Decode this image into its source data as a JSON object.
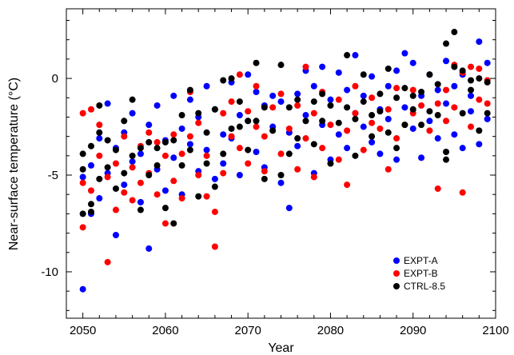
{
  "chart_data": {
    "type": "scatter",
    "xlabel": "Year",
    "ylabel": "Near-surface temperature (°C)",
    "xlim": [
      2048,
      2100
    ],
    "ylim": [
      -12.4,
      3.6
    ],
    "xticks": [
      2050,
      2060,
      2070,
      2080,
      2090,
      2100
    ],
    "yticks": [
      -10,
      -5,
      0
    ],
    "xtick_labels": [
      "2050",
      "2060",
      "2070",
      "2080",
      "2090",
      "2100"
    ],
    "ytick_labels": [
      "-10",
      "-5",
      "0"
    ],
    "legend_position": "bottom-right",
    "grid": false,
    "series": [
      {
        "name": "EXPT-A",
        "color": "#0000ff",
        "points": [
          [
            2050,
            -10.9
          ],
          [
            2050,
            -5.1
          ],
          [
            2051,
            -7.0
          ],
          [
            2051,
            -4.5
          ],
          [
            2052,
            -3.1
          ],
          [
            2052,
            -6.2
          ],
          [
            2053,
            -1.3
          ],
          [
            2053,
            -4.9
          ],
          [
            2054,
            -8.1
          ],
          [
            2054,
            -3.6
          ],
          [
            2055,
            -2.8
          ],
          [
            2055,
            -5.5
          ],
          [
            2056,
            -4.3
          ],
          [
            2056,
            -1.8
          ],
          [
            2057,
            -6.4
          ],
          [
            2057,
            -3.9
          ],
          [
            2058,
            -8.8
          ],
          [
            2058,
            -2.4
          ],
          [
            2059,
            -4.7
          ],
          [
            2059,
            -1.4
          ],
          [
            2060,
            -3.2
          ],
          [
            2060,
            -5.8
          ],
          [
            2061,
            -0.9
          ],
          [
            2061,
            -4.1
          ],
          [
            2062,
            -2.6
          ],
          [
            2062,
            -6.0
          ],
          [
            2063,
            -3.4
          ],
          [
            2063,
            -1.1
          ],
          [
            2064,
            -4.8
          ],
          [
            2064,
            -2.0
          ],
          [
            2065,
            -0.4
          ],
          [
            2065,
            -3.7
          ],
          [
            2066,
            -5.2
          ],
          [
            2066,
            -1.6
          ],
          [
            2067,
            -2.9
          ],
          [
            2067,
            -4.4
          ],
          [
            2068,
            -0.2
          ],
          [
            2068,
            -3.1
          ],
          [
            2069,
            -1.9
          ],
          [
            2069,
            -5.0
          ],
          [
            2070,
            0.2
          ],
          [
            2070,
            -2.2
          ],
          [
            2071,
            -3.8
          ],
          [
            2071,
            -0.7
          ],
          [
            2072,
            -1.4
          ],
          [
            2072,
            -4.6
          ],
          [
            2073,
            -2.5
          ],
          [
            2073,
            -0.9
          ],
          [
            2074,
            -5.4
          ],
          [
            2074,
            -1.2
          ],
          [
            2075,
            -6.7
          ],
          [
            2075,
            -2.8
          ],
          [
            2076,
            -0.8
          ],
          [
            2076,
            -3.5
          ],
          [
            2077,
            0.4
          ],
          [
            2077,
            -1.9
          ],
          [
            2078,
            -4.9
          ],
          [
            2078,
            -0.4
          ],
          [
            2079,
            -2.4
          ],
          [
            2079,
            0.6
          ],
          [
            2080,
            -4.2
          ],
          [
            2080,
            -1.1
          ],
          [
            2081,
            -2.9
          ],
          [
            2081,
            0.3
          ],
          [
            2082,
            -3.6
          ],
          [
            2082,
            -0.6
          ],
          [
            2083,
            1.2
          ],
          [
            2083,
            -1.8
          ],
          [
            2084,
            -2.5
          ],
          [
            2084,
            -0.9
          ],
          [
            2085,
            -3.3
          ],
          [
            2085,
            0.1
          ],
          [
            2086,
            -1.6
          ],
          [
            2086,
            -3.9
          ],
          [
            2087,
            -0.4
          ],
          [
            2087,
            -2.1
          ],
          [
            2088,
            -4.2
          ],
          [
            2088,
            0.4
          ],
          [
            2089,
            1.3
          ],
          [
            2089,
            -1.5
          ],
          [
            2090,
            -2.6
          ],
          [
            2090,
            0.8
          ],
          [
            2091,
            -4.1
          ],
          [
            2091,
            -0.9
          ],
          [
            2092,
            0.2
          ],
          [
            2092,
            -2.2
          ],
          [
            2093,
            -3.1
          ],
          [
            2093,
            -0.6
          ],
          [
            2094,
            0.9
          ],
          [
            2094,
            -1.3
          ],
          [
            2095,
            -2.9
          ],
          [
            2095,
            -0.4
          ],
          [
            2096,
            0.2
          ],
          [
            2096,
            -3.6
          ],
          [
            2097,
            -1.7
          ],
          [
            2097,
            -0.9
          ],
          [
            2098,
            -3.4
          ],
          [
            2098,
            1.9
          ],
          [
            2099,
            -2.1
          ],
          [
            2099,
            0.8
          ]
        ]
      },
      {
        "name": "EXPT-B",
        "color": "#ff0000",
        "points": [
          [
            2050,
            -7.7
          ],
          [
            2050,
            -1.8
          ],
          [
            2050,
            -5.4
          ],
          [
            2051,
            -1.6
          ],
          [
            2051,
            -5.8
          ],
          [
            2052,
            -4.0
          ],
          [
            2052,
            -2.4
          ],
          [
            2053,
            -9.5
          ],
          [
            2053,
            -5.1
          ],
          [
            2054,
            -4.4
          ],
          [
            2054,
            -6.8
          ],
          [
            2055,
            -5.9
          ],
          [
            2055,
            -3.0
          ],
          [
            2056,
            -6.3
          ],
          [
            2056,
            -4.6
          ],
          [
            2057,
            -3.5
          ],
          [
            2057,
            -5.4
          ],
          [
            2058,
            -2.8
          ],
          [
            2058,
            -4.9
          ],
          [
            2059,
            -6.0
          ],
          [
            2059,
            -3.3
          ],
          [
            2060,
            -7.5
          ],
          [
            2060,
            -4.0
          ],
          [
            2061,
            -5.3
          ],
          [
            2061,
            -2.9
          ],
          [
            2062,
            -3.9
          ],
          [
            2062,
            -6.2
          ],
          [
            2063,
            -3.0
          ],
          [
            2063,
            -0.7
          ],
          [
            2064,
            -5.0
          ],
          [
            2064,
            -2.3
          ],
          [
            2065,
            -4.0
          ],
          [
            2065,
            -6.1
          ],
          [
            2066,
            -8.7
          ],
          [
            2066,
            -6.9
          ],
          [
            2067,
            -1.8
          ],
          [
            2067,
            -4.9
          ],
          [
            2068,
            -3.0
          ],
          [
            2068,
            -1.2
          ],
          [
            2069,
            0.2
          ],
          [
            2069,
            -3.6
          ],
          [
            2070,
            -4.4
          ],
          [
            2070,
            -1.7
          ],
          [
            2071,
            -2.5
          ],
          [
            2071,
            -0.4
          ],
          [
            2072,
            -4.8
          ],
          [
            2072,
            -3.0
          ],
          [
            2073,
            -1.5
          ],
          [
            2074,
            -3.9
          ],
          [
            2074,
            -0.8
          ],
          [
            2075,
            -2.6
          ],
          [
            2076,
            -4.7
          ],
          [
            2076,
            -1.4
          ],
          [
            2077,
            0.6
          ],
          [
            2077,
            -3.1
          ],
          [
            2078,
            -5.1
          ],
          [
            2078,
            -1.8
          ],
          [
            2079,
            -3.6
          ],
          [
            2079,
            -0.7
          ],
          [
            2080,
            -2.4
          ],
          [
            2081,
            -4.2
          ],
          [
            2081,
            -1.1
          ],
          [
            2082,
            -5.5
          ],
          [
            2082,
            -2.7
          ],
          [
            2083,
            -1.8
          ],
          [
            2083,
            -0.4
          ],
          [
            2084,
            -3.7
          ],
          [
            2085,
            -2.3
          ],
          [
            2085,
            -1.0
          ],
          [
            2086,
            -2.6
          ],
          [
            2087,
            -4.7
          ],
          [
            2087,
            -1.6
          ],
          [
            2088,
            -3.1
          ],
          [
            2088,
            -0.5
          ],
          [
            2089,
            -2.4
          ],
          [
            2090,
            -1.8
          ],
          [
            2090,
            -0.6
          ],
          [
            2091,
            -1.4
          ],
          [
            2092,
            -2.7
          ],
          [
            2093,
            -1.3
          ],
          [
            2093,
            -5.7
          ],
          [
            2094,
            -0.6
          ],
          [
            2094,
            -2.2
          ],
          [
            2095,
            0.7
          ],
          [
            2095,
            -1.5
          ],
          [
            2096,
            -5.9
          ],
          [
            2096,
            0.3
          ],
          [
            2097,
            -2.5
          ],
          [
            2097,
            0.6
          ],
          [
            2098,
            -1.1
          ],
          [
            2098,
            0.5
          ],
          [
            2099,
            -1.3
          ],
          [
            2099,
            -0.1
          ]
        ]
      },
      {
        "name": "CTRL-8.5",
        "color": "#000000",
        "points": [
          [
            2050,
            -7.0
          ],
          [
            2050,
            -4.7
          ],
          [
            2050,
            -3.9
          ],
          [
            2051,
            -6.9
          ],
          [
            2051,
            -6.5
          ],
          [
            2051,
            -3.5
          ],
          [
            2052,
            -5.2
          ],
          [
            2052,
            -2.8
          ],
          [
            2052,
            -1.4
          ],
          [
            2053,
            -4.6
          ],
          [
            2053,
            -3.2
          ],
          [
            2054,
            -5.7
          ],
          [
            2054,
            -3.7
          ],
          [
            2055,
            -4.9
          ],
          [
            2055,
            -2.2
          ],
          [
            2056,
            -4.0
          ],
          [
            2056,
            -1.1
          ],
          [
            2057,
            -6.8
          ],
          [
            2057,
            -3.6
          ],
          [
            2058,
            -3.3
          ],
          [
            2058,
            -5.0
          ],
          [
            2059,
            -3.6
          ],
          [
            2059,
            -4.5
          ],
          [
            2060,
            -3.3
          ],
          [
            2060,
            -6.7
          ],
          [
            2061,
            -7.5
          ],
          [
            2061,
            -3.2
          ],
          [
            2062,
            -4.5
          ],
          [
            2062,
            -1.9
          ],
          [
            2063,
            -3.7
          ],
          [
            2063,
            -0.6
          ],
          [
            2064,
            -6.1
          ],
          [
            2064,
            -1.8
          ],
          [
            2065,
            -4.4
          ],
          [
            2065,
            -2.8
          ],
          [
            2066,
            -5.6
          ],
          [
            2066,
            -1.6
          ],
          [
            2067,
            -0.1
          ],
          [
            2067,
            -3.9
          ],
          [
            2068,
            -2.6
          ],
          [
            2068,
            0.0
          ],
          [
            2069,
            -2.5
          ],
          [
            2069,
            -1.2
          ],
          [
            2070,
            -2.2
          ],
          [
            2070,
            -3.7
          ],
          [
            2071,
            0.8
          ],
          [
            2071,
            -2.2
          ],
          [
            2072,
            -5.2
          ],
          [
            2072,
            -1.5
          ],
          [
            2073,
            -2.7
          ],
          [
            2074,
            -5.0
          ],
          [
            2074,
            0.7
          ],
          [
            2075,
            -3.9
          ],
          [
            2075,
            -1.5
          ],
          [
            2076,
            -3.1
          ],
          [
            2076,
            -1.1
          ],
          [
            2077,
            -2.2
          ],
          [
            2078,
            -3.4
          ],
          [
            2078,
            -1.2
          ],
          [
            2079,
            -2.2
          ],
          [
            2079,
            -0.8
          ],
          [
            2080,
            -4.4
          ],
          [
            2080,
            -1.4
          ],
          [
            2081,
            -2.3
          ],
          [
            2082,
            -1.5
          ],
          [
            2082,
            1.2
          ],
          [
            2083,
            -4.0
          ],
          [
            2083,
            -2.1
          ],
          [
            2084,
            -1.2
          ],
          [
            2084,
            0.2
          ],
          [
            2085,
            -3.0
          ],
          [
            2085,
            -1.9
          ],
          [
            2086,
            -0.8
          ],
          [
            2086,
            -1.7
          ],
          [
            2087,
            -2.8
          ],
          [
            2087,
            0.5
          ],
          [
            2088,
            -3.6
          ],
          [
            2088,
            -1.0
          ],
          [
            2089,
            -2.4
          ],
          [
            2089,
            -0.5
          ],
          [
            2090,
            -1.6
          ],
          [
            2090,
            -0.9
          ],
          [
            2091,
            -2.4
          ],
          [
            2091,
            -0.7
          ],
          [
            2092,
            -1.7
          ],
          [
            2092,
            0.2
          ],
          [
            2093,
            -1.9
          ],
          [
            2093,
            -0.3
          ],
          [
            2094,
            -4.2
          ],
          [
            2094,
            1.8
          ],
          [
            2094,
            -3.8
          ],
          [
            2095,
            2.4
          ],
          [
            2095,
            0.6
          ],
          [
            2096,
            0.4
          ],
          [
            2096,
            -1.8
          ],
          [
            2097,
            -0.6
          ],
          [
            2097,
            -0.1
          ],
          [
            2098,
            -2.7
          ],
          [
            2098,
            0.0
          ],
          [
            2099,
            -1.8
          ],
          [
            2099,
            -0.2
          ]
        ]
      }
    ]
  }
}
